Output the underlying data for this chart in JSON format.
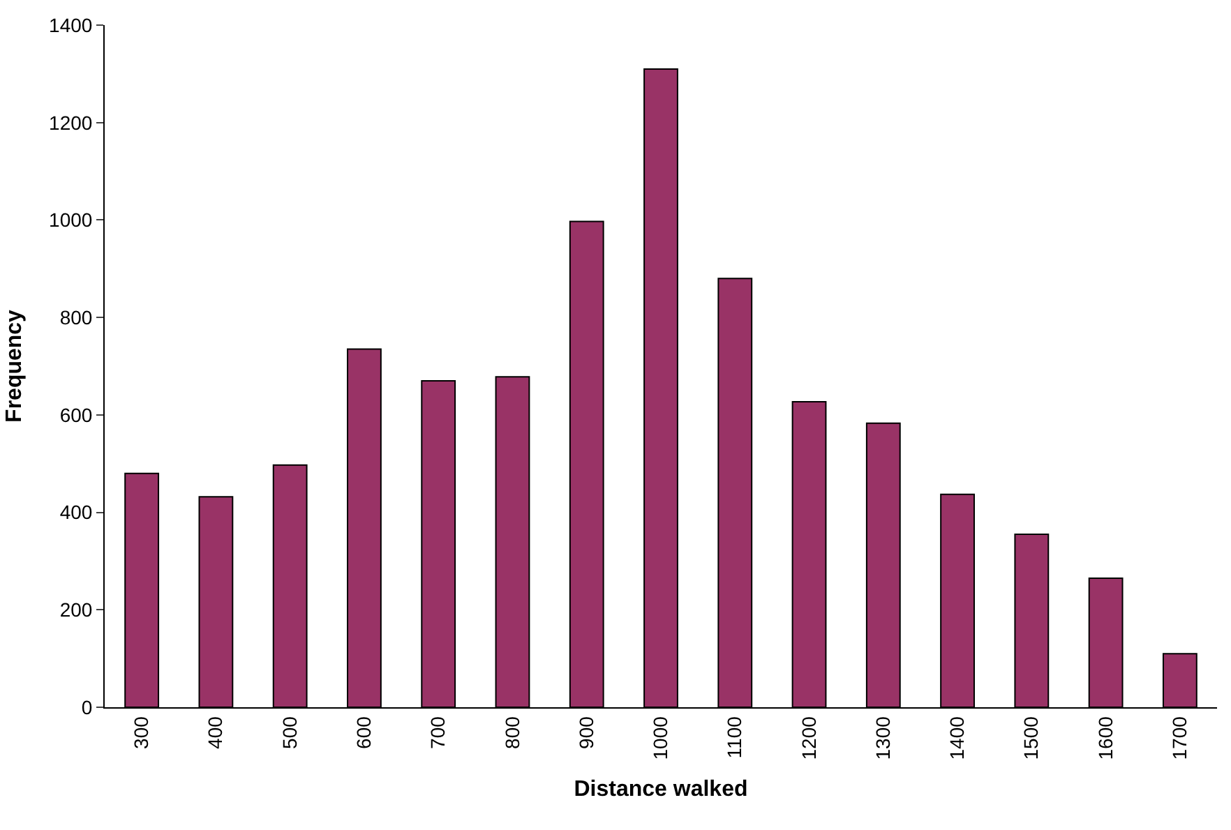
{
  "chart_data": {
    "type": "bar",
    "xlabel": "Distance walked",
    "ylabel": "Frequency",
    "categories": [
      "300",
      "400",
      "500",
      "600",
      "700",
      "800",
      "900",
      "1000",
      "1100",
      "1200",
      "1300",
      "1400",
      "1500",
      "1600",
      "1700"
    ],
    "values": [
      480,
      432,
      497,
      735,
      670,
      678,
      997,
      1310,
      880,
      627,
      583,
      437,
      355,
      265,
      110
    ],
    "color": "#993366",
    "ylim": [
      0,
      1400
    ],
    "yticks": [
      0,
      200,
      400,
      600,
      800,
      1000,
      1200,
      1400
    ]
  }
}
